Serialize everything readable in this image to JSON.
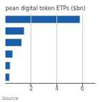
{
  "chart_data": {
    "type": "bar",
    "orientation": "horizontal",
    "title": "pean digital token ETPs ($bn)",
    "annotations": [
      "Source"
    ],
    "categories": [
      null,
      null,
      null,
      null,
      null,
      null
    ],
    "values": [
      5.8,
      1.45,
      1.25,
      0.55,
      0.35,
      0.3
    ],
    "color": "#1b5ea8",
    "xlim": [
      0,
      7.0
    ],
    "xticks": [
      2,
      4,
      6
    ],
    "grid": true,
    "tick_labels": "x"
  }
}
